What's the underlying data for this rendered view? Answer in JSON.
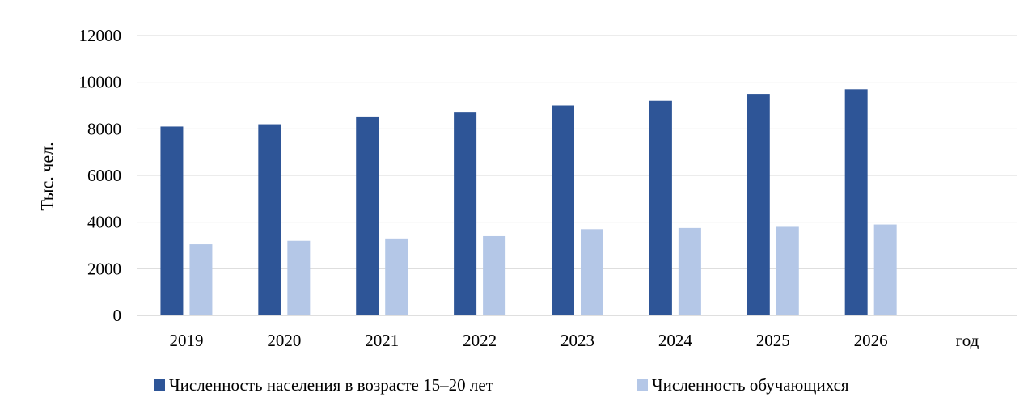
{
  "chart_data": {
    "type": "bar",
    "categories": [
      "2019",
      "2020",
      "2021",
      "2022",
      "2023",
      "2024",
      "2025",
      "2026",
      ""
    ],
    "series": [
      {
        "name": "Численность населения в возрасте 15–20 лет",
        "color": "#2e5597",
        "values": [
          8100,
          8200,
          8500,
          8700,
          9000,
          9200,
          9500,
          9700,
          null
        ]
      },
      {
        "name": "Численность обучающихся",
        "color": "#b4c7e7",
        "values": [
          3050,
          3200,
          3300,
          3400,
          3700,
          3750,
          3800,
          3900,
          null
        ]
      }
    ],
    "title": "",
    "xlabel": "год",
    "ylabel": "Тыс. чел.",
    "ylim": [
      0,
      12000
    ],
    "yticks": [
      0,
      2000,
      4000,
      6000,
      8000,
      10000,
      12000
    ],
    "grid": true,
    "legend_position": "bottom",
    "colors": {
      "grid": "#d9d9d9",
      "axis": "#bfbfbf",
      "text": "#000000"
    }
  }
}
